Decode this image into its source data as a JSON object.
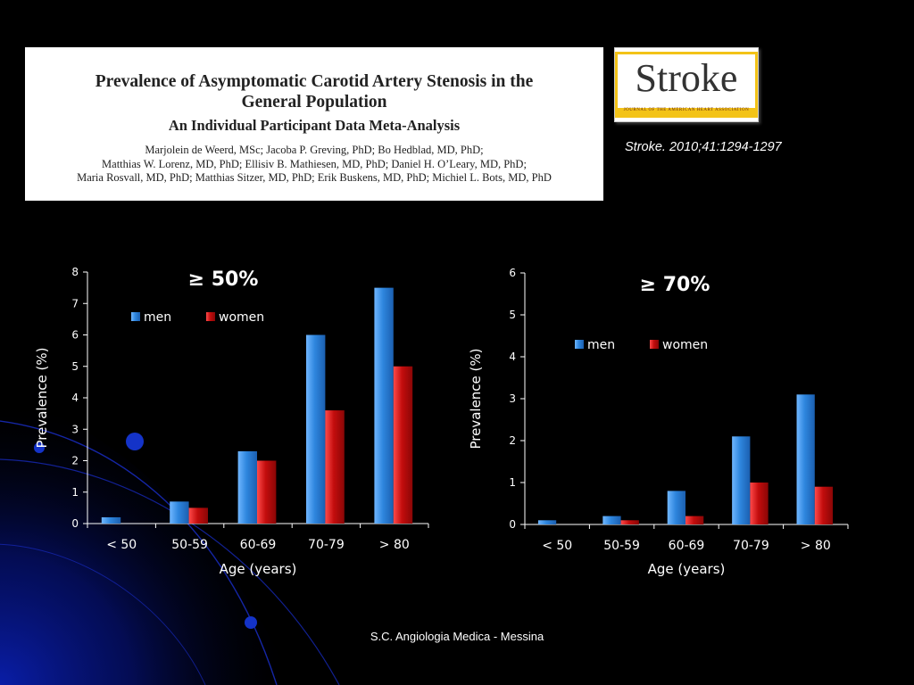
{
  "paper": {
    "title_line1": "Prevalence of Asymptomatic Carotid Artery Stenosis in the",
    "title_line2": "General Population",
    "subtitle": "An Individual Participant Data Meta-Analysis",
    "authors_line1": "Marjolein de Weerd, MSc; Jacoba P. Greving, PhD; Bo Hedblad, MD, PhD;",
    "authors_line2": "Matthias W. Lorenz, MD, PhD; Ellisiv B. Mathiesen, MD, PhD; Daniel H. O’Leary, MD, PhD;",
    "authors_line3": "Maria Rosvall, MD, PhD; Matthias Sitzer, MD, PhD; Erik Buskens, MD, PhD; Michiel L. Bots, MD, PhD"
  },
  "logo": {
    "word": "Stroke",
    "tagline": "JOURNAL OF THE AMERICAN HEART ASSOCIATION"
  },
  "citation": "Stroke. 2010;41:1294-1297",
  "footer": "S.C. Angiologia Medica - Messina",
  "colors": {
    "men": "#2e86de",
    "women": "#c30d0d",
    "background": "#000000"
  },
  "chart_data": [
    {
      "type": "bar",
      "title": "≥ 50%",
      "xlabel": "Age (years)",
      "ylabel": "Prevalence (%)",
      "ylim": [
        0,
        8
      ],
      "yticks": [
        0,
        1,
        2,
        3,
        4,
        5,
        6,
        7,
        8
      ],
      "categories": [
        "< 50",
        "50-59",
        "60-69",
        "70-79",
        "> 80"
      ],
      "series": [
        {
          "name": "men",
          "values": [
            0.2,
            0.7,
            2.3,
            6.0,
            7.5
          ]
        },
        {
          "name": "women",
          "values": [
            0.0,
            0.5,
            2.0,
            3.6,
            5.0
          ]
        }
      ],
      "legend": "top-left",
      "grid": false
    },
    {
      "type": "bar",
      "title": "≥ 70%",
      "xlabel": "Age (years)",
      "ylabel": "Prevalence (%)",
      "ylim": [
        0,
        6
      ],
      "yticks": [
        0,
        1,
        2,
        3,
        4,
        5,
        6
      ],
      "categories": [
        "< 50",
        "50-59",
        "60-69",
        "70-79",
        "> 80"
      ],
      "series": [
        {
          "name": "men",
          "values": [
            0.1,
            0.2,
            0.8,
            2.1,
            3.1
          ]
        },
        {
          "name": "women",
          "values": [
            0.0,
            0.1,
            0.2,
            1.0,
            0.9
          ]
        }
      ],
      "legend": "top-left",
      "grid": false
    }
  ]
}
